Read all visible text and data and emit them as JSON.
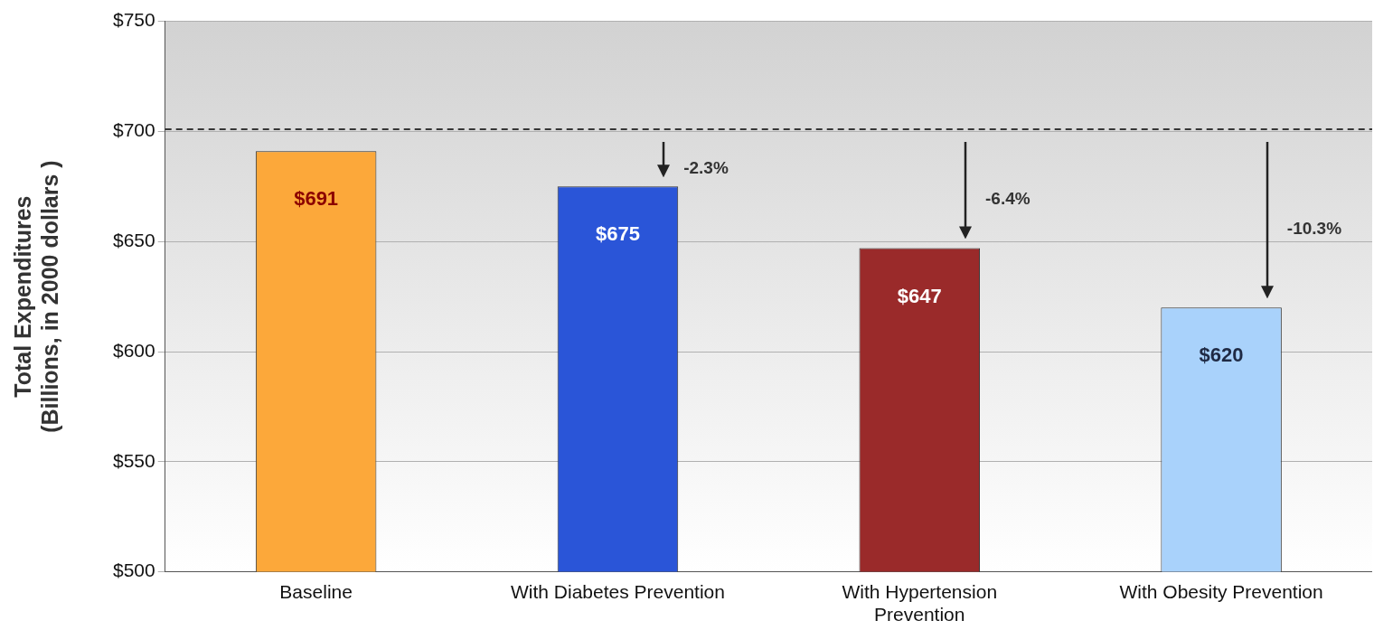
{
  "chart_data": {
    "type": "bar",
    "ylabel": "Total Expenditures\n(Billions, in 2000 dollars )",
    "categories": [
      "Baseline",
      "With Diabetes Prevention",
      "With Hypertension Prevention",
      "With Obesity Prevention"
    ],
    "values": [
      691,
      675,
      647,
      620
    ],
    "colors": [
      "#fca83a",
      "#2a55d8",
      "#9a2a2a",
      "#a9d2fb"
    ],
    "ylim": [
      500,
      750
    ],
    "yticks": [
      {
        "value": 500,
        "label": "$500"
      },
      {
        "value": 550,
        "label": "$550"
      },
      {
        "value": 600,
        "label": "$600"
      },
      {
        "value": 650,
        "label": "$650"
      },
      {
        "value": 700,
        "label": "$700"
      },
      {
        "value": 750,
        "label": "$750"
      }
    ],
    "value_labels": [
      "$691",
      "$675",
      "$647",
      "$620"
    ],
    "ref_lines": [
      {
        "axis": "y",
        "value": 701,
        "color": "#000000",
        "line_style": "dashed"
      }
    ],
    "annotations": [
      "-2.3%",
      "-6.4%",
      "-10.3%"
    ],
    "grid": "y",
    "legend": false
  }
}
